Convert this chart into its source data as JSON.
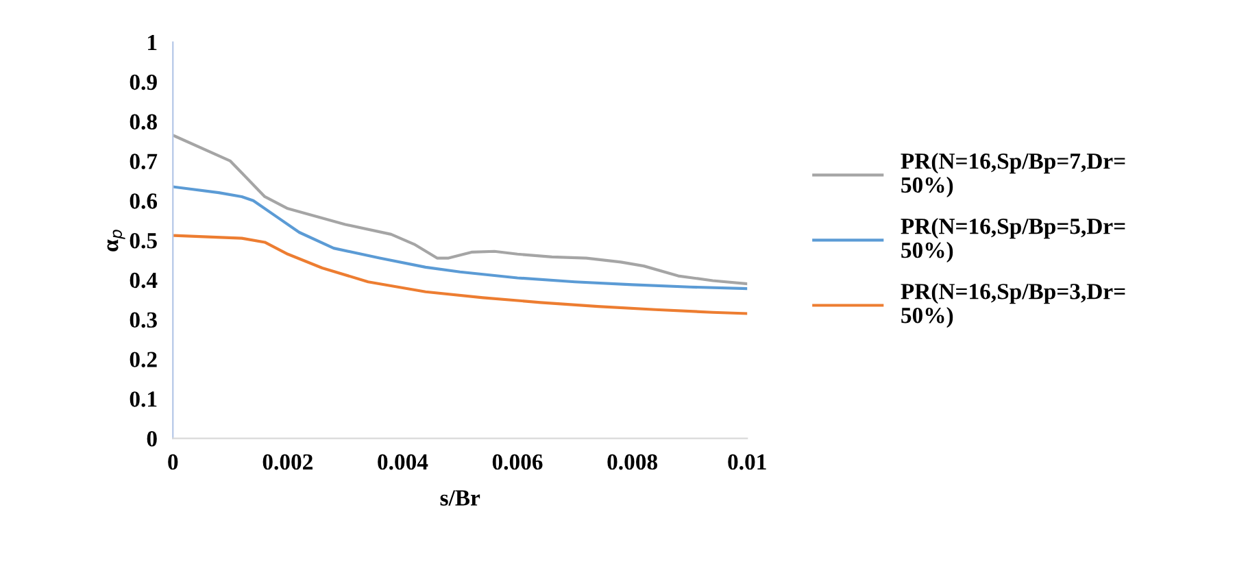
{
  "chart_data": {
    "type": "line",
    "xlabel": "s/Br",
    "ylabel": "α$_{p}$",
    "xlim": [
      0,
      0.01
    ],
    "xticks": [
      0,
      0.002,
      0.004,
      0.006,
      0.008,
      0.01
    ],
    "ylim": [
      0,
      1
    ],
    "yticks": [
      0,
      0.1,
      0.2,
      0.3,
      0.4,
      0.5,
      0.6,
      0.7,
      0.8,
      0.9,
      1
    ],
    "grid": false,
    "legend": "right",
    "marker": "none",
    "line_style": "solid",
    "series": [
      {
        "name": "PR(N=16,Sp/Bp=7,Dr=\n50%)",
        "color": "#a5a5a5",
        "x": [
          0,
          0.001,
          0.0012,
          0.0016,
          0.002,
          0.003,
          0.0038,
          0.0042,
          0.0046,
          0.0048,
          0.0052,
          0.0056,
          0.006,
          0.0066,
          0.0072,
          0.0078,
          0.0082,
          0.0088,
          0.0094,
          0.01
        ],
        "values": [
          0.765,
          0.7,
          0.67,
          0.61,
          0.58,
          0.54,
          0.515,
          0.49,
          0.455,
          0.455,
          0.47,
          0.472,
          0.465,
          0.458,
          0.455,
          0.445,
          0.435,
          0.41,
          0.398,
          0.39
        ]
      },
      {
        "name": "PR(N=16,Sp/Bp=5,Dr=\n50%)",
        "color": "#5b9bd5",
        "x": [
          0,
          0.0008,
          0.0012,
          0.0014,
          0.0018,
          0.0022,
          0.0028,
          0.0036,
          0.0044,
          0.005,
          0.006,
          0.007,
          0.008,
          0.009,
          0.01
        ],
        "values": [
          0.635,
          0.62,
          0.61,
          0.6,
          0.56,
          0.52,
          0.48,
          0.455,
          0.432,
          0.42,
          0.405,
          0.395,
          0.388,
          0.382,
          0.378
        ]
      },
      {
        "name": "PR(N=16,Sp/Bp=3,Dr=\n50%)",
        "color": "#ed7d31",
        "x": [
          0,
          0.0012,
          0.0016,
          0.002,
          0.0026,
          0.0034,
          0.0044,
          0.0054,
          0.0064,
          0.0074,
          0.0084,
          0.0094,
          0.01
        ],
        "values": [
          0.512,
          0.505,
          0.495,
          0.465,
          0.43,
          0.395,
          0.37,
          0.355,
          0.343,
          0.333,
          0.325,
          0.318,
          0.315
        ]
      }
    ]
  }
}
